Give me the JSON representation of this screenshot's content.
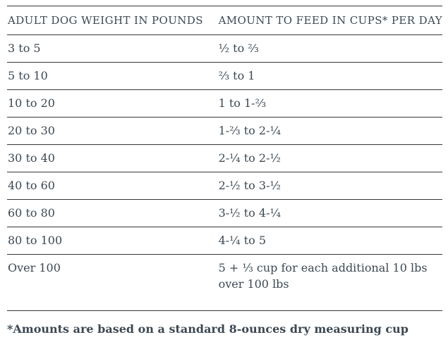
{
  "colors": {
    "text": "#3c4852",
    "border": "#32373c",
    "background": "#ffffff"
  },
  "chart_data": {
    "type": "table",
    "columns": [
      "ADULT DOG WEIGHT IN POUNDS",
      "AMOUNT TO FEED IN CUPS* PER DAY"
    ],
    "rows": [
      [
        "3 to 5",
        "½ to ⅔"
      ],
      [
        "5 to 10",
        "⅔ to 1"
      ],
      [
        "10 to 20",
        "1 to 1-⅔"
      ],
      [
        "20 to 30",
        "1-⅔ to 2-¼"
      ],
      [
        "30 to 40",
        "2-¼ to 2-½"
      ],
      [
        "40 to 60",
        "2-½ to 3-½"
      ],
      [
        "60 to 80",
        "3-½ to 4-¼"
      ],
      [
        "80 to 100",
        "4-¼ to 5"
      ],
      [
        "Over 100",
        "5 + ⅓ cup for each additional 10 lbs over 100 lbs"
      ]
    ]
  },
  "footnote": "*Amounts are based on a standard 8-ounces dry measuring cup"
}
